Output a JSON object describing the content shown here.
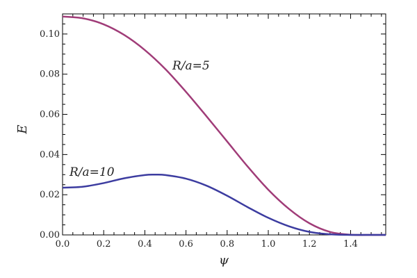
{
  "chart_data": {
    "type": "line",
    "title": "",
    "xlabel": "ψ",
    "ylabel": "E",
    "xlim": [
      0,
      1.5708
    ],
    "ylim": [
      0,
      0.11
    ],
    "xticks": [
      "0.0",
      "0.2",
      "0.4",
      "0.6",
      "0.8",
      "1.0",
      "1.2",
      "1.4"
    ],
    "yticks": [
      "0.00",
      "0.02",
      "0.04",
      "0.06",
      "0.08",
      "0.10"
    ],
    "grid": false,
    "series": [
      {
        "name": "",
        "color": "#a03c78",
        "annotation": "R/a=5",
        "x": [
          0.0,
          0.1,
          0.2,
          0.3,
          0.4,
          0.5,
          0.6,
          0.7,
          0.8,
          0.9,
          1.0,
          1.1,
          1.2,
          1.3,
          1.4,
          1.5,
          1.5708
        ],
        "y": [
          0.1087,
          0.1078,
          0.1048,
          0.0995,
          0.092,
          0.0825,
          0.0712,
          0.059,
          0.0465,
          0.034,
          0.0225,
          0.013,
          0.0058,
          0.0015,
          0.0001,
          0.0,
          0.0
        ]
      },
      {
        "name": "",
        "color": "#3c3ca0",
        "annotation": "R/a=10",
        "x": [
          0.0,
          0.1,
          0.2,
          0.3,
          0.4,
          0.45,
          0.5,
          0.6,
          0.7,
          0.8,
          0.9,
          1.0,
          1.1,
          1.2,
          1.3,
          1.4,
          1.5,
          1.5708
        ],
        "y": [
          0.0235,
          0.024,
          0.0258,
          0.0282,
          0.0298,
          0.03,
          0.0298,
          0.028,
          0.0245,
          0.0195,
          0.0138,
          0.0085,
          0.0043,
          0.0015,
          0.0003,
          0.0,
          0.0,
          0.0
        ]
      }
    ]
  }
}
